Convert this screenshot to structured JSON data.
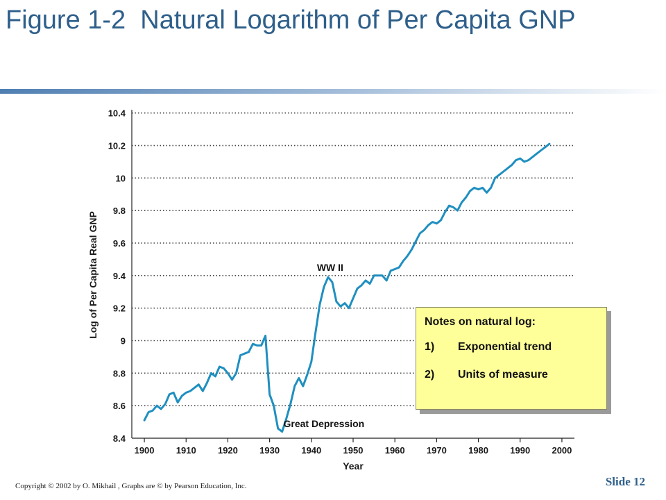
{
  "slide": {
    "title": "Figure 1-2  Natural Logarithm of Per Capita GNP",
    "footer": "Copyright © 2002 by O. Mikhail , Graphs are © by Pearson Education, Inc.",
    "slide_number": "Slide 12"
  },
  "notes": {
    "title": "Notes on natural log:",
    "items": [
      {
        "num": "1)",
        "text": "Exponential trend"
      },
      {
        "num": "2)",
        "text": "Units of measure"
      }
    ]
  },
  "colors": {
    "line": "#1f8fc0",
    "title": "#2e5f8a",
    "notes_bg": "#ffff99"
  },
  "chart_data": {
    "type": "line",
    "title": "",
    "xlabel": "Year",
    "ylabel": "Log of Per Capita Real GNP",
    "xlim": [
      1897,
      2003
    ],
    "ylim": [
      8.4,
      10.42
    ],
    "xticks": [
      1900,
      1910,
      1920,
      1930,
      1940,
      1950,
      1960,
      1970,
      1980,
      1990,
      2000
    ],
    "yticks": [
      8.4,
      8.6,
      8.8,
      9,
      9.2,
      9.4,
      9.6,
      9.8,
      10,
      10.2,
      10.4
    ],
    "ytick_labels": [
      "8.4",
      "8.6",
      "8.8",
      "9",
      "9.2",
      "9.4",
      "9.6",
      "9.8",
      "10",
      "10.2",
      "10.4"
    ],
    "grid": "horizontal dotted",
    "annotations": [
      {
        "text": "WW II",
        "x": 1944.5,
        "y": 9.45
      },
      {
        "text": "Great Depression",
        "x": 1943,
        "y": 8.49
      }
    ],
    "series": [
      {
        "x": [
          1900,
          1901,
          1902,
          1903,
          1904,
          1905,
          1906,
          1907,
          1908,
          1909,
          1910,
          1911,
          1912,
          1913,
          1914,
          1915,
          1916,
          1917,
          1918,
          1919,
          1920,
          1921,
          1922,
          1923,
          1924,
          1925,
          1926,
          1927,
          1928,
          1929,
          1930,
          1931,
          1932,
          1933,
          1934,
          1935,
          1936,
          1937,
          1938,
          1939,
          1940,
          1941,
          1942,
          1943,
          1944,
          1945,
          1946,
          1947,
          1948,
          1949,
          1950,
          1951,
          1952,
          1953,
          1954,
          1955,
          1956,
          1957,
          1958,
          1959,
          1960,
          1961,
          1962,
          1963,
          1964,
          1965,
          1966,
          1967,
          1968,
          1969,
          1970,
          1971,
          1972,
          1973,
          1974,
          1975,
          1976,
          1977,
          1978,
          1979,
          1980,
          1981,
          1982,
          1983,
          1984,
          1985,
          1986,
          1987,
          1988,
          1989,
          1990,
          1991,
          1992,
          1993,
          1994,
          1995,
          1996,
          1997
        ],
        "values": [
          8.51,
          8.56,
          8.57,
          8.6,
          8.58,
          8.61,
          8.67,
          8.68,
          8.62,
          8.66,
          8.68,
          8.69,
          8.71,
          8.73,
          8.69,
          8.74,
          8.8,
          8.78,
          8.84,
          8.83,
          8.8,
          8.76,
          8.8,
          8.91,
          8.92,
          8.93,
          8.98,
          8.97,
          8.97,
          9.03,
          8.67,
          8.6,
          8.46,
          8.44,
          8.52,
          8.61,
          8.72,
          8.77,
          8.72,
          8.79,
          8.87,
          9.05,
          9.22,
          9.33,
          9.39,
          9.36,
          9.24,
          9.21,
          9.23,
          9.2,
          9.26,
          9.32,
          9.34,
          9.37,
          9.35,
          9.4,
          9.4,
          9.4,
          9.37,
          9.43,
          9.44,
          9.45,
          9.49,
          9.52,
          9.56,
          9.61,
          9.66,
          9.68,
          9.71,
          9.73,
          9.72,
          9.74,
          9.79,
          9.83,
          9.82,
          9.8,
          9.85,
          9.88,
          9.92,
          9.94,
          9.93,
          9.94,
          9.91,
          9.94,
          10.0,
          10.02,
          10.04,
          10.06,
          10.08,
          10.11,
          10.12,
          10.1,
          10.11,
          10.13,
          10.15,
          10.17,
          10.19,
          10.21
        ]
      }
    ]
  }
}
